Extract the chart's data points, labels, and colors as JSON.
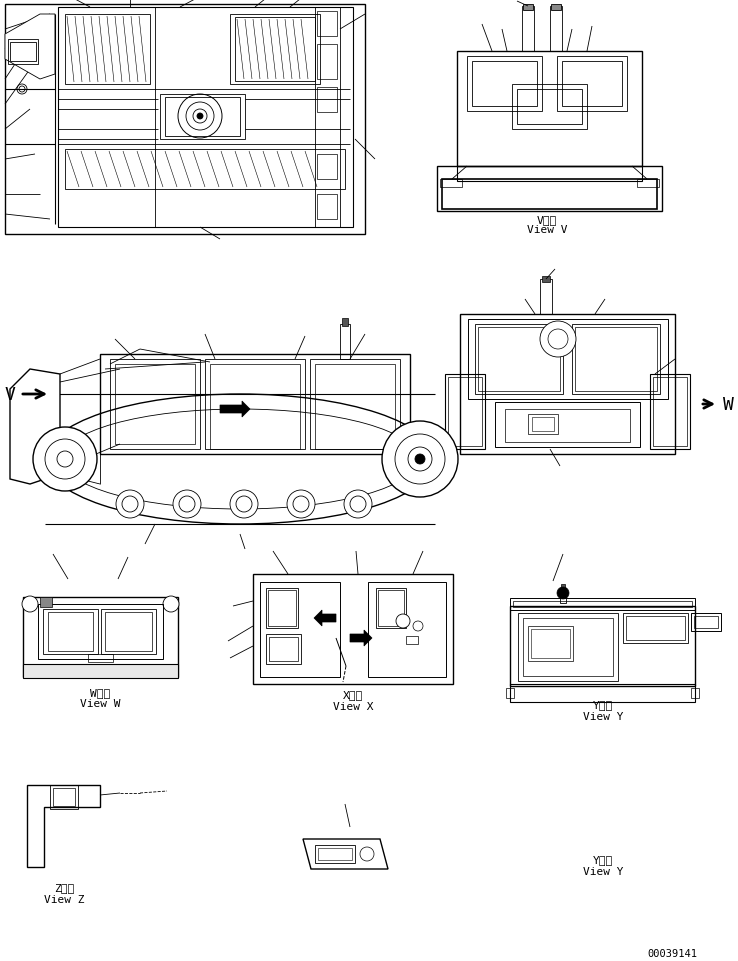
{
  "bg_color": "#ffffff",
  "line_color": "#000000",
  "fig_width": 7.38,
  "fig_height": 9.62,
  "dpi": 100,
  "part_number": "00039141",
  "lw": 0.6,
  "lw2": 1.0,
  "views": {
    "V": {
      "label_jp": "V　視",
      "label_en": "View V"
    },
    "W": {
      "label_jp": "W　視",
      "label_en": "View W"
    },
    "X": {
      "label_jp": "X　視",
      "label_en": "View X"
    },
    "Y": {
      "label_jp": "Y　視",
      "label_en": "View Y"
    },
    "Z": {
      "label_jp": "Z　視",
      "label_en": "View Z"
    }
  }
}
